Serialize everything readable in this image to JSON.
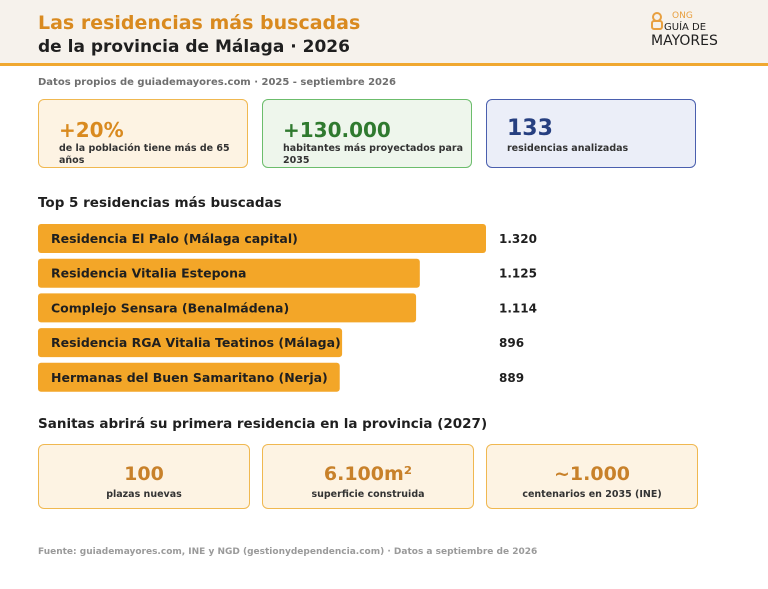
{
  "header": {
    "title_line1": "Las residencias más buscadas",
    "title_line2": "de la provincia de Málaga · 2026",
    "logo": {
      "ong": "ONG",
      "guia": "GUÍA DE",
      "mayores": "MAYORES"
    }
  },
  "subtitle": "Datos propios de guiademayores.com · 2025 - septiembre 2026",
  "kpis": [
    {
      "value": "+20%",
      "label": "de la población tiene más de 65 años",
      "color": "#d98a1f"
    },
    {
      "value": "+130.000",
      "label": "habitantes más proyectados para 2035",
      "color": "#2f7a2f"
    },
    {
      "value": "133",
      "label": "residencias analizadas",
      "color": "#263f80"
    }
  ],
  "chart_title": "Top 5 residencias más buscadas",
  "chart_data": {
    "type": "bar",
    "orientation": "horizontal",
    "categories": [
      "Residencia El Palo (Málaga capital)",
      "Residencia Vitalia Estepona",
      "Complejo Sensara (Benalmádena)",
      "Residencia RGA Vitalia Teatinos (Málaga)",
      "Hermanas del Buen Samaritano (Nerja)"
    ],
    "values": [
      1320,
      1125,
      1114,
      896,
      889
    ],
    "value_labels": [
      "1.320",
      "1.125",
      "1.114",
      "896",
      "889"
    ],
    "bar_color": "#f3a628"
  },
  "sanitas": {
    "title": "Sanitas abrirá su primera residencia en la provincia (2027)",
    "cards": [
      {
        "value": "100",
        "label": "plazas nuevas"
      },
      {
        "value": "6.100m²",
        "label": "superficie construida"
      },
      {
        "value": "~1.000",
        "label": "centenarios en 2035 (INE)"
      }
    ]
  },
  "footer": "Fuente: guiademayores.com, INE y NGD (gestionydependencia.com) · Datos a septiembre de 2026"
}
